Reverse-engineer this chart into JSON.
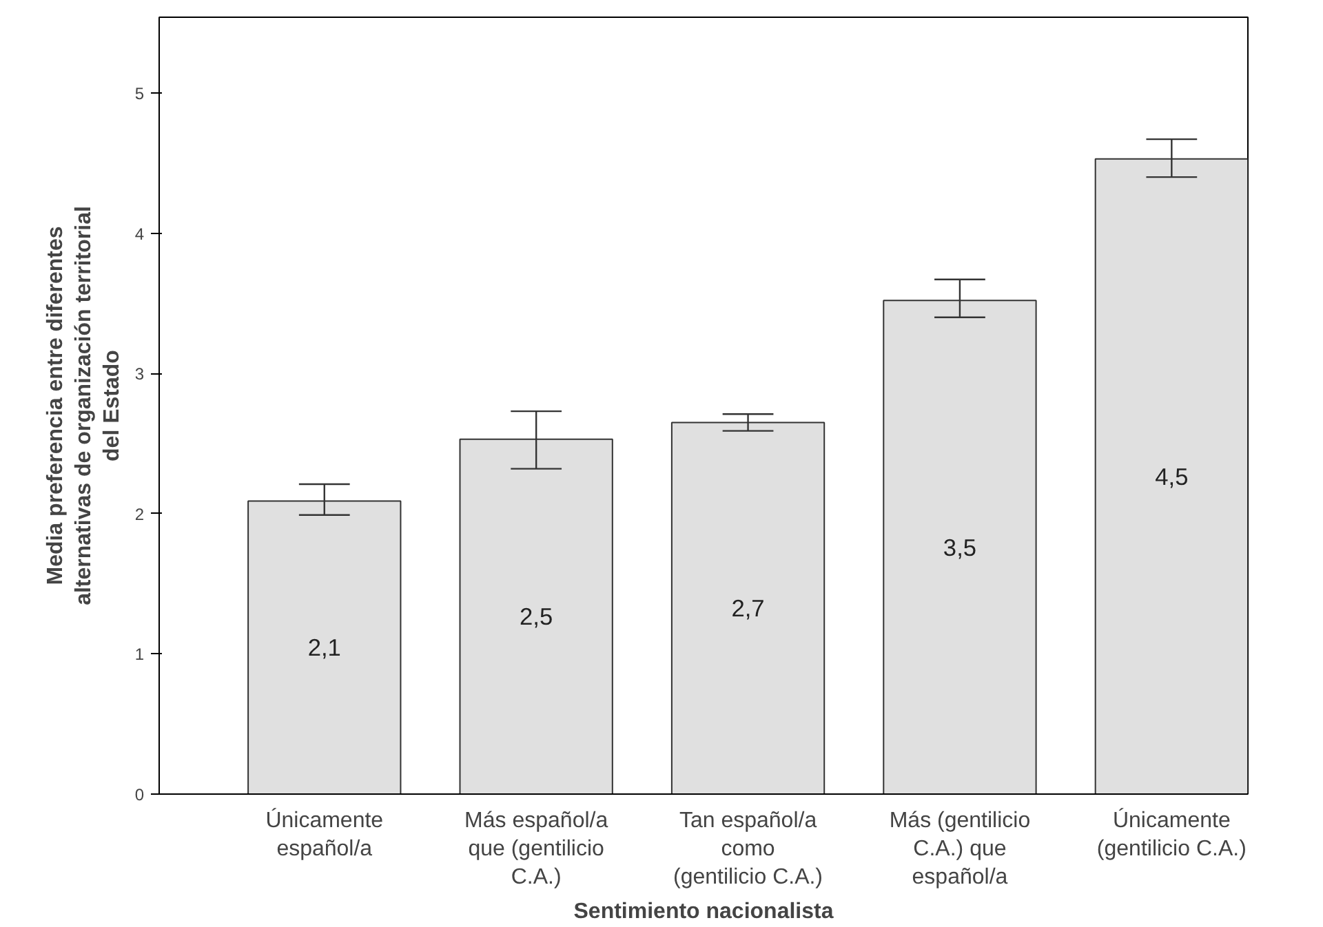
{
  "chart_data": {
    "type": "bar",
    "xlabel": "Sentimiento nacionalista",
    "ylabel": "Media preferencia entre diferentes alternativas de organización territorial del Estado",
    "categories": [
      "Únicamente\nespañol/a",
      "Más español/a\nque (gentilicio\nC.A.)",
      "Tan español/a\ncomo\n(gentilicio C.A.)",
      "Más (gentilicio\nC.A.) que\nespañol/a",
      "Únicamente\n(gentilicio C.A.)"
    ],
    "values": [
      2.09,
      2.53,
      2.65,
      3.52,
      4.53
    ],
    "value_labels": [
      "2,1",
      "2,5",
      "2,7",
      "3,5",
      "4,5"
    ],
    "errors": [
      [
        1.99,
        2.21
      ],
      [
        2.32,
        2.73
      ],
      [
        2.59,
        2.71
      ],
      [
        3.4,
        3.67
      ],
      [
        4.4,
        4.67
      ]
    ],
    "color": "#e0e0e0",
    "ylim": [
      0,
      5.54
    ],
    "yticks": [
      0,
      1,
      2,
      3,
      4,
      5
    ],
    "grid": false
  }
}
